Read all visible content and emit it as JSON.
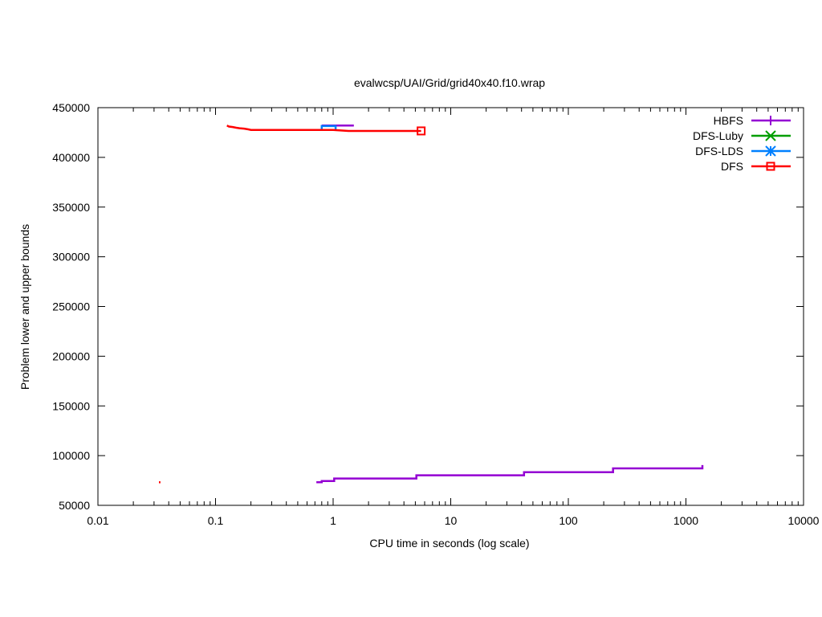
{
  "chart_data": {
    "type": "line",
    "title": "evalwcsp/UAI/Grid/grid40x40.f10.wrap",
    "xlabel": "CPU time in seconds (log scale)",
    "ylabel": "Problem lower and upper bounds",
    "x_scale": "log",
    "xlim": [
      0.01,
      10000
    ],
    "ylim": [
      50000,
      450000
    ],
    "x_ticks": [
      {
        "value": 0.01,
        "label": "0.01"
      },
      {
        "value": 0.1,
        "label": "0.1"
      },
      {
        "value": 1,
        "label": "1"
      },
      {
        "value": 10,
        "label": "10"
      },
      {
        "value": 100,
        "label": "100"
      },
      {
        "value": 1000,
        "label": "1000"
      },
      {
        "value": 10000,
        "label": "10000"
      }
    ],
    "y_ticks": [
      {
        "value": 50000,
        "label": "50000"
      },
      {
        "value": 100000,
        "label": "100000"
      },
      {
        "value": 150000,
        "label": "150000"
      },
      {
        "value": 200000,
        "label": "200000"
      },
      {
        "value": 250000,
        "label": "250000"
      },
      {
        "value": 300000,
        "label": "300000"
      },
      {
        "value": 350000,
        "label": "350000"
      },
      {
        "value": 400000,
        "label": "400000"
      },
      {
        "value": 450000,
        "label": "450000"
      }
    ],
    "grid": false,
    "legend_position": "top-right",
    "series": [
      {
        "name": "HBFS",
        "color": "#9400d3",
        "marker": "plus",
        "end_marker": false,
        "segments": [
          [
            [
              0.72,
              73200
            ],
            [
              0.8,
              73200
            ],
            [
              0.8,
              74500
            ],
            [
              1.02,
              74500
            ],
            [
              1.02,
              77000
            ],
            [
              5.1,
              77000
            ],
            [
              5.1,
              80200
            ],
            [
              42,
              80200
            ],
            [
              42,
              83400
            ],
            [
              240,
              83400
            ],
            [
              240,
              87200
            ],
            [
              1380,
              87200
            ],
            [
              1380,
              90500
            ]
          ],
          [
            [
              0.8,
              432000
            ],
            [
              1.5,
              432000
            ]
          ]
        ]
      },
      {
        "name": "DFS-Luby",
        "color": "#009e00",
        "marker": "x",
        "end_marker": false,
        "segments": []
      },
      {
        "name": "DFS-LDS",
        "color": "#0080ff",
        "marker": "star",
        "end_marker": false,
        "segments": [
          [
            [
              0.8,
              427000
            ],
            [
              0.8,
              431500
            ],
            [
              1.05,
              431500
            ],
            [
              1.05,
              427000
            ]
          ]
        ]
      },
      {
        "name": "DFS",
        "color": "#ff0000",
        "marker": "square",
        "end_marker": true,
        "segments": [
          [
            [
              0.125,
              432000
            ],
            [
              0.13,
              431000
            ],
            [
              0.14,
              430500
            ],
            [
              0.15,
              429800
            ],
            [
              0.16,
              429300
            ],
            [
              0.175,
              428900
            ],
            [
              0.19,
              428200
            ],
            [
              0.2,
              427600
            ],
            [
              1.0,
              427600
            ],
            [
              1.35,
              426600
            ],
            [
              5.6,
              426600
            ]
          ],
          [
            [
              0.033,
              73200
            ],
            [
              0.034,
              73200
            ]
          ]
        ]
      }
    ]
  }
}
